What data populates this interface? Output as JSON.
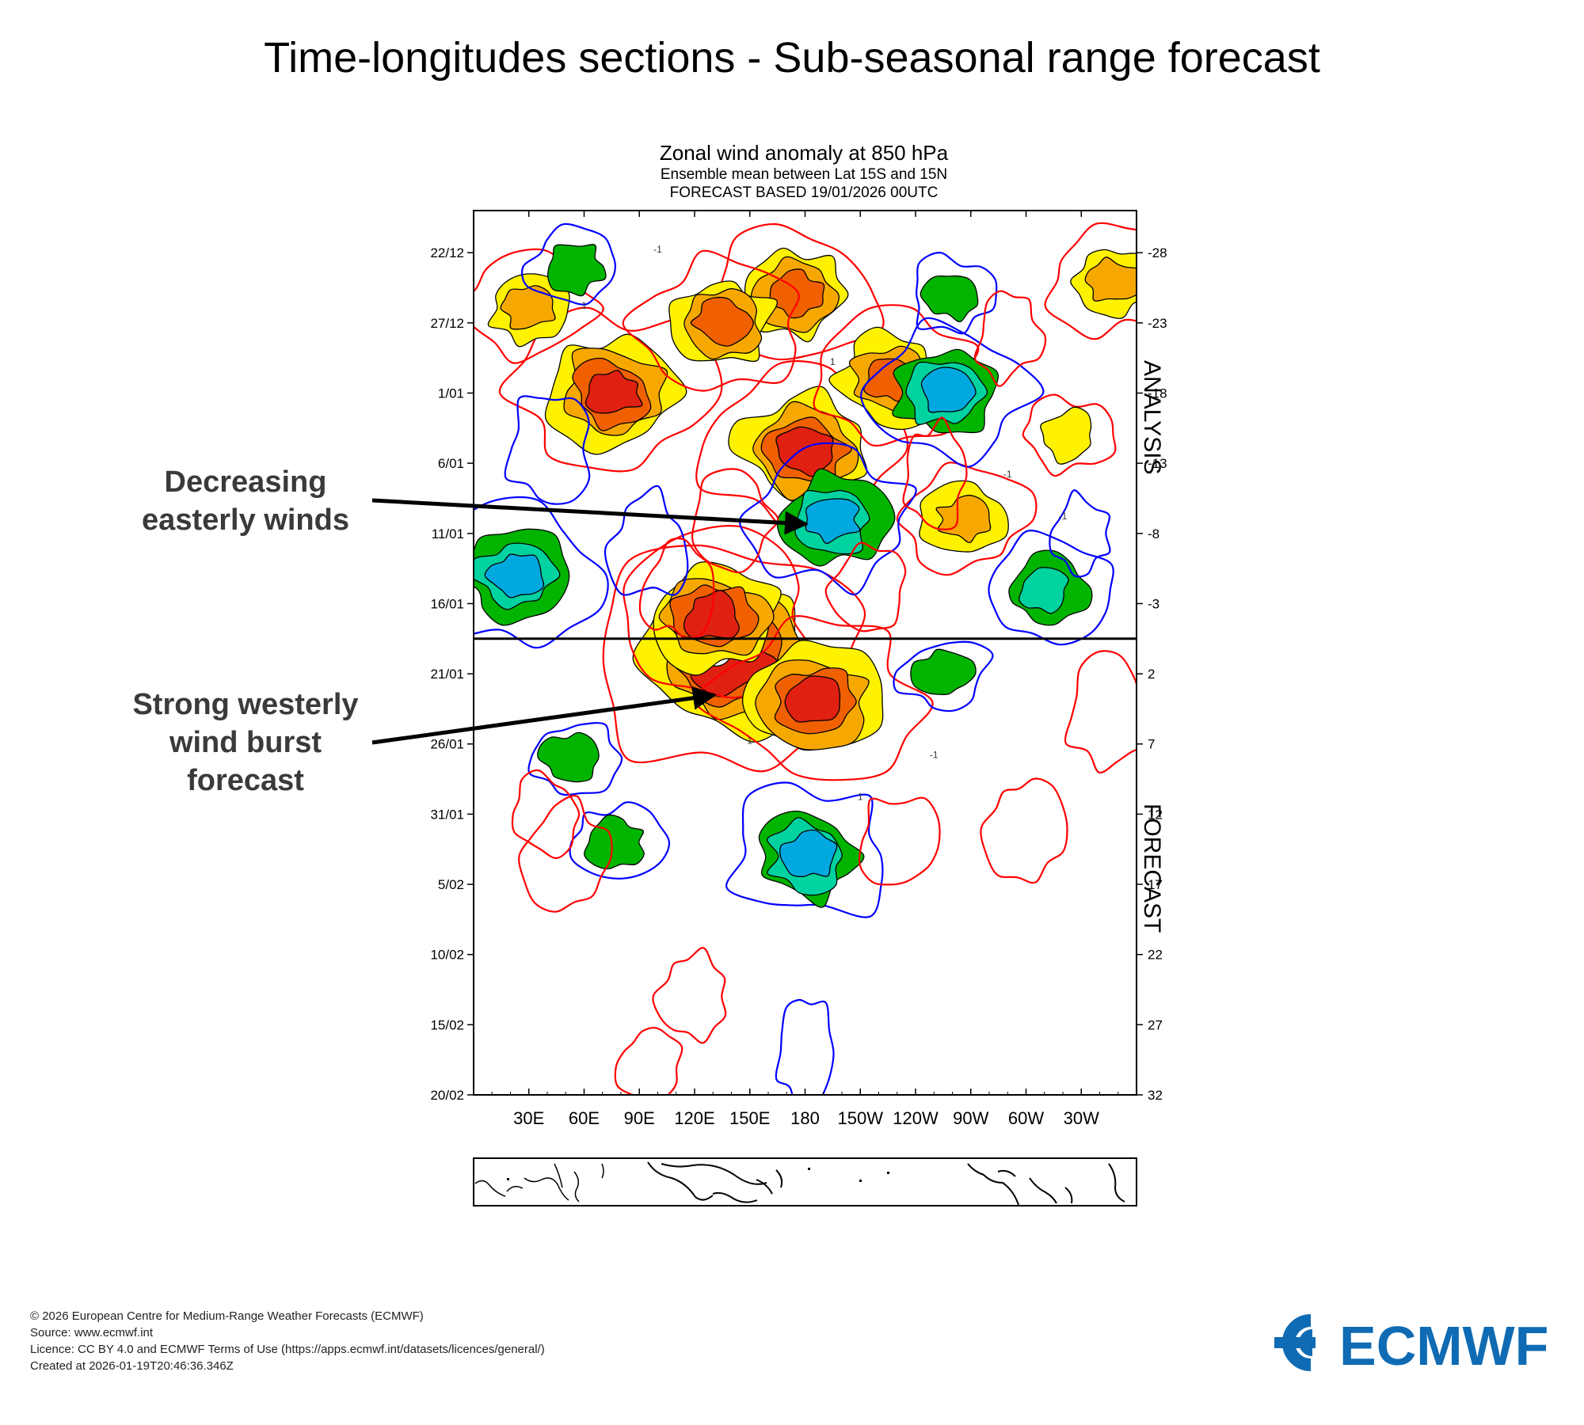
{
  "page_title": "Time-longitudes sections - Sub-seasonal range forecast",
  "chart_data": {
    "type": "heatmap",
    "title": "Zonal wind anomaly at 850 hPa",
    "subtitle": "Ensemble mean between  Lat 15S and 15N",
    "subtitle2": "FORECAST  BASED 19/01/2026 00UTC",
    "x_ticks": [
      "30E",
      "60E",
      "90E",
      "120E",
      "150E",
      "180",
      "150W",
      "120W",
      "90W",
      "60W",
      "30W"
    ],
    "x_tick_values": [
      30,
      60,
      90,
      120,
      150,
      180,
      210,
      240,
      270,
      300,
      330
    ],
    "xlim": [
      0,
      360
    ],
    "y_ticks_left": [
      "22/12",
      "27/12",
      "1/01",
      "6/01",
      "11/01",
      "16/01",
      "21/01",
      "26/01",
      "31/01",
      "5/02",
      "10/02",
      "15/02",
      "20/02"
    ],
    "y_ticks_right": [
      "-28",
      "-23",
      "-18",
      "-13",
      "-8",
      "-3",
      "2",
      "7",
      "12",
      "17",
      "22",
      "27",
      "32"
    ],
    "y_tick_values": [
      -28,
      -23,
      -18,
      -13,
      -8,
      -3,
      2,
      7,
      12,
      17,
      22,
      27,
      32
    ],
    "ylim": [
      -31,
      32
    ],
    "separator_day": -0.5,
    "region_labels": [
      "ANALYSIS",
      "FORECAST"
    ],
    "contour_labels": [
      "-1",
      "1",
      "-1",
      "1",
      "-1",
      "1",
      "-1",
      "1"
    ],
    "colors": {
      "westerly_1": "#fff200",
      "westerly_2": "#f7a800",
      "westerly_3": "#f06000",
      "westerly_4": "#e02010",
      "easterly_1": "#00b400",
      "easterly_2": "#00d2a0",
      "easterly_3": "#00a8e0",
      "positive_contour": "#ff0000",
      "negative_contour": "#0000ff"
    },
    "features": [
      {
        "sign": "positive",
        "lon": 140,
        "day": 1,
        "strength": 6
      },
      {
        "sign": "positive",
        "lon": 130,
        "day": -2,
        "strength": 4
      },
      {
        "sign": "positive",
        "lon": 186,
        "day": 4,
        "strength": 4
      },
      {
        "sign": "positive",
        "lon": 75,
        "day": -18,
        "strength": 4
      },
      {
        "sign": "positive",
        "lon": 180,
        "day": -14,
        "strength": 4
      },
      {
        "sign": "positive",
        "lon": 175,
        "day": -25,
        "strength": 3
      },
      {
        "sign": "positive",
        "lon": 227,
        "day": -19,
        "strength": 3
      },
      {
        "sign": "positive",
        "lon": 135,
        "day": -23,
        "strength": 3
      },
      {
        "sign": "positive",
        "lon": 30,
        "day": -24,
        "strength": 2
      },
      {
        "sign": "positive",
        "lon": 266,
        "day": -9,
        "strength": 2
      },
      {
        "sign": "positive",
        "lon": 322,
        "day": -15,
        "strength": 1
      },
      {
        "sign": "positive",
        "lon": 347,
        "day": -26,
        "strength": 2
      },
      {
        "sign": "negative",
        "lon": 182,
        "day": 15,
        "strength": 3
      },
      {
        "sign": "negative",
        "lon": 195,
        "day": -9,
        "strength": 3
      },
      {
        "sign": "negative",
        "lon": 257,
        "day": -18,
        "strength": 3
      },
      {
        "sign": "negative",
        "lon": 23,
        "day": -5,
        "strength": 3
      },
      {
        "sign": "negative",
        "lon": 310,
        "day": -4,
        "strength": 2
      },
      {
        "sign": "negative",
        "lon": 260,
        "day": -25,
        "strength": 1
      },
      {
        "sign": "negative",
        "lon": 55,
        "day": -27,
        "strength": 1
      },
      {
        "sign": "negative",
        "lon": 255,
        "day": 2,
        "strength": 1
      },
      {
        "sign": "negative",
        "lon": 77,
        "day": 14,
        "strength": 1
      },
      {
        "sign": "negative",
        "lon": 53,
        "day": 8,
        "strength": 1
      }
    ]
  },
  "annotations": {
    "decreasing_easterly": "Decreasing easterly winds",
    "westerly_burst": "Strong westerly wind burst forecast"
  },
  "footer": {
    "copyright": "© 2026 European Centre for Medium-Range Weather Forecasts (ECMWF)",
    "source": "Source: www.ecmwf.int",
    "licence": "Licence: CC BY 4.0 and ECMWF Terms of Use (https://apps.ecmwf.int/datasets/licences/general/)",
    "created": "Created at 2026-01-19T20:46:36.346Z"
  },
  "logo": {
    "text": "ECMWF",
    "color": "#0f6bb3"
  }
}
